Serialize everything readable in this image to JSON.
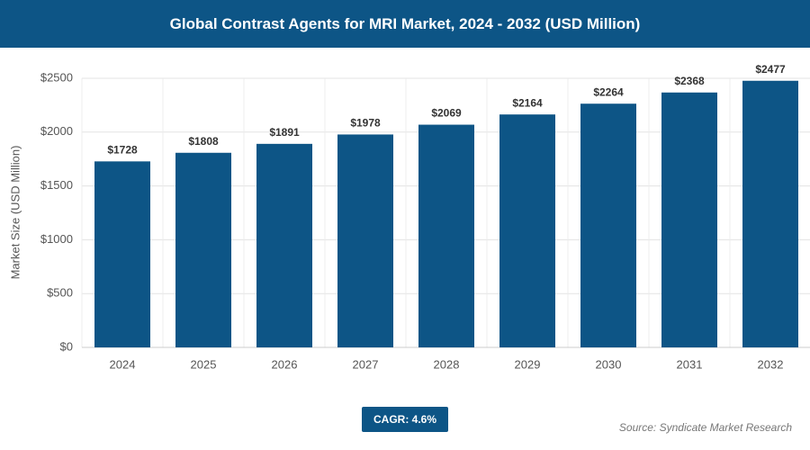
{
  "chart_data": {
    "type": "bar",
    "title": "Global Contrast Agents for MRI Market, 2024 - 2032 (USD Million)",
    "y_label": "Market Size (USD Million)",
    "categories": [
      "2024",
      "2025",
      "2026",
      "2027",
      "2028",
      "2029",
      "2030",
      "2031",
      "2032"
    ],
    "values": [
      1728,
      1808,
      1891,
      1978,
      2069,
      2164,
      2264,
      2368,
      2477
    ],
    "value_labels": [
      "$1728",
      "$1808",
      "$1891",
      "$1978",
      "$2069",
      "$2164",
      "$2264",
      "$2368",
      "$2477"
    ],
    "color": "#0d5586",
    "ylim": [
      0,
      2500
    ],
    "yticks": [
      {
        "value": 0,
        "label": "$0"
      },
      {
        "value": 500,
        "label": "$500"
      },
      {
        "value": 1000,
        "label": "$1000"
      },
      {
        "value": 1500,
        "label": "$1500"
      },
      {
        "value": 2000,
        "label": "$2000"
      },
      {
        "value": 2500,
        "label": "$2500"
      }
    ],
    "grid": true,
    "annotation": "CAGR: 4.6%",
    "source": "Source: Syndicate Market Research"
  }
}
